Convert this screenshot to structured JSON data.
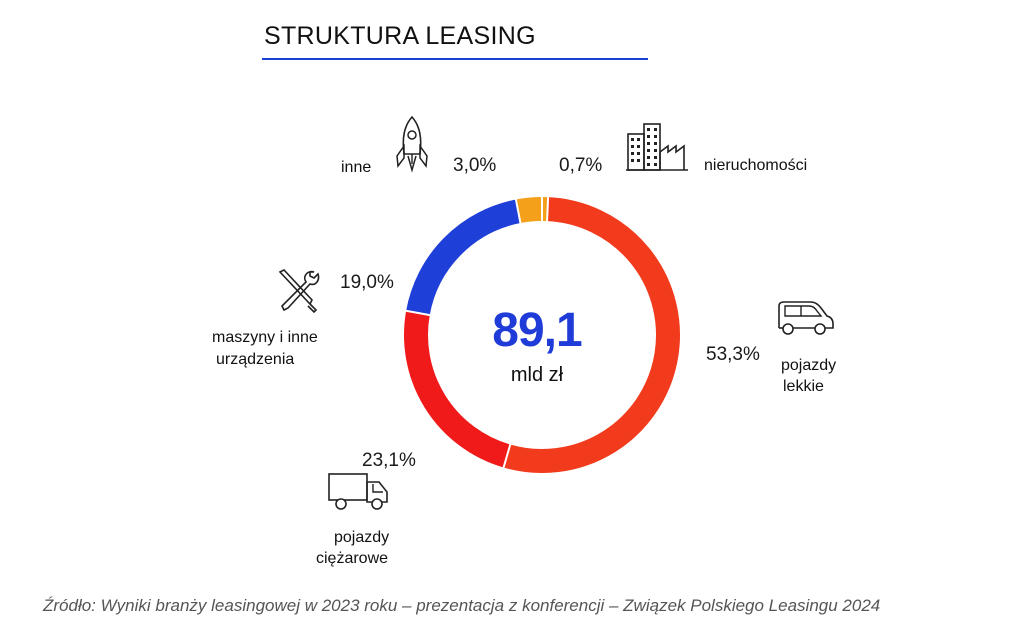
{
  "header": {
    "title": "STRUKTURA LEASING"
  },
  "center": {
    "value": "89,1",
    "unit": "mld zł"
  },
  "source": "Źródło: Wyniki branży leasingowej w 2023 roku – prezentacja z konferencji – Związek Polskiego Leasingu 2024",
  "labels": {
    "nieruchomosci": {
      "pct": "0,7%",
      "name": "nieruchomości"
    },
    "pojazdy_lekkie": {
      "pct": "53,3%",
      "name1": "pojazdy",
      "name2": "lekkie"
    },
    "pojazdy_ciezarowe": {
      "pct": "23,1%",
      "name1": "pojazdy",
      "name2": "ciężarowe"
    },
    "maszyny": {
      "pct": "19,0%",
      "name1": "maszyny i inne",
      "name2": "urządzenia"
    },
    "inne": {
      "pct": "3,0%",
      "name": "inne"
    }
  },
  "icons": [
    "building-icon",
    "car-icon",
    "truck-icon",
    "tools-icon",
    "rocket-icon"
  ],
  "chart_data": {
    "type": "pie",
    "variant": "donut",
    "unit": "%",
    "slices": [
      {
        "name": "nieruchomości",
        "value": 0.7,
        "color": "#f5a01a"
      },
      {
        "name": "pojazdy lekkie",
        "value": 53.3,
        "color": "#f23b1c"
      },
      {
        "name": "pojazdy ciężarowe",
        "value": 23.1,
        "color": "#f11a1a"
      },
      {
        "name": "maszyny i inne urządzenia",
        "value": 19.0,
        "color": "#1e3fd8"
      },
      {
        "name": "inne",
        "value": 3.0,
        "color": "#f5a01a"
      }
    ],
    "total": {
      "value": "89,1",
      "unit": "mld zł"
    }
  }
}
